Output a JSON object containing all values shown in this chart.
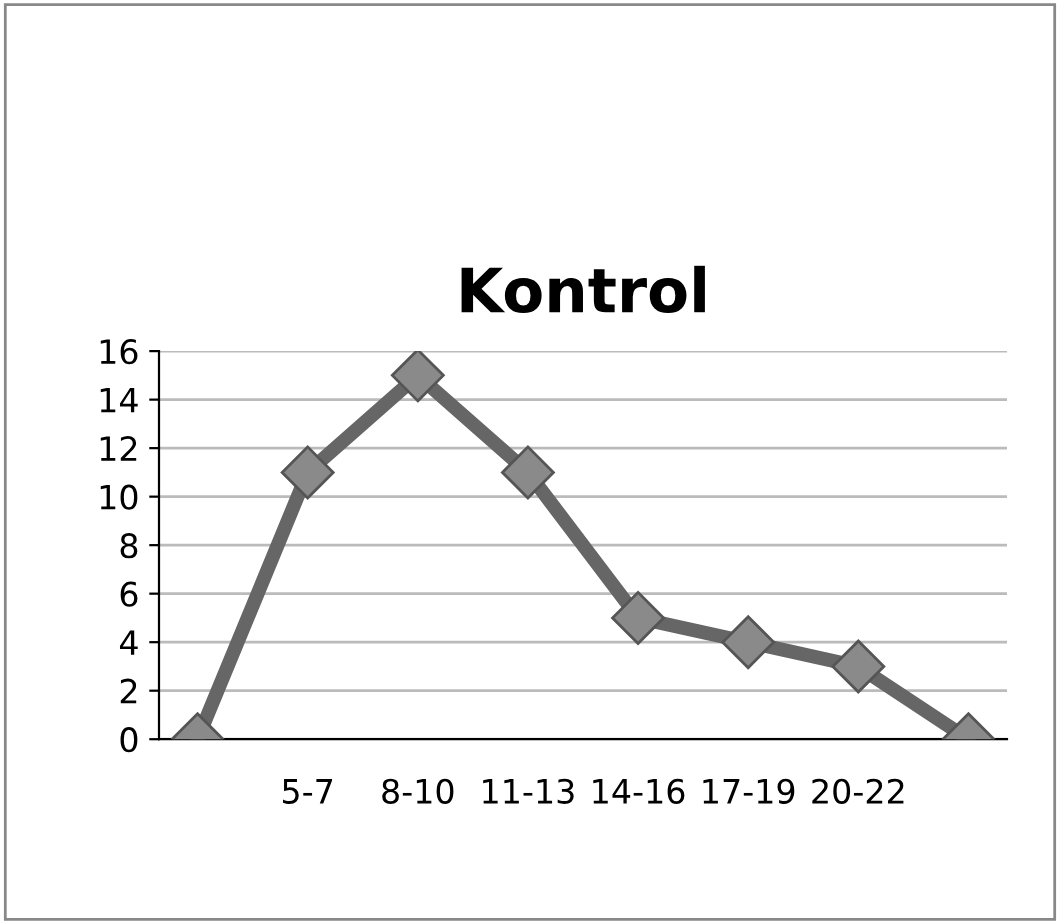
{
  "chart_data": {
    "type": "line",
    "title": "Kontrol",
    "categories": [
      null,
      "5-7",
      "8-10",
      "11-13",
      "14-16",
      "17-19",
      "20-22",
      null
    ],
    "series": [
      {
        "color": "#666666",
        "values": [
          0,
          11,
          15,
          11,
          5,
          4,
          3,
          0
        ]
      }
    ],
    "ylim": [
      0,
      16
    ],
    "yticks": [
      0,
      2,
      4,
      6,
      8,
      10,
      12,
      14,
      16
    ],
    "grid": "y",
    "marker": "diamond",
    "line_style": "solid",
    "legend": false
  }
}
